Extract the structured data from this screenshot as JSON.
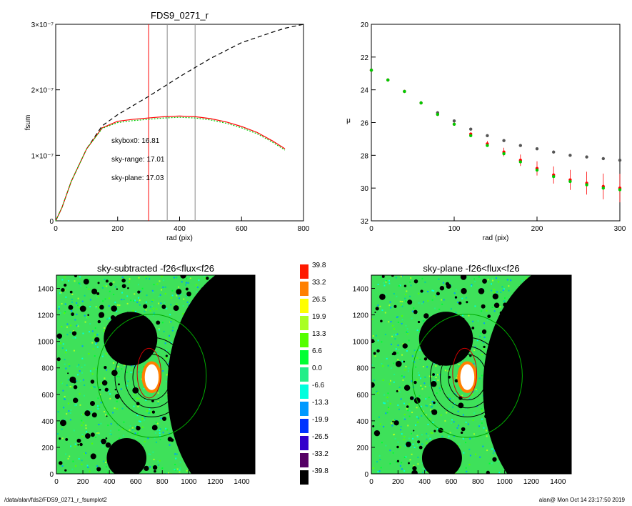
{
  "footer": {
    "path": "/data/alan/fds2/FDS9_0271_r_fsumplot2",
    "user_time": "alan@  Mon Oct 14 23:17:50 2019"
  },
  "chart_data": [
    {
      "type": "line",
      "title": "FDS9_0271_r",
      "xlabel": "rad (pix)",
      "ylabel": "fsum",
      "xlim": [
        0,
        800
      ],
      "ylim": [
        0,
        3e-07
      ],
      "xticks": [
        "0",
        "200",
        "400",
        "600",
        "800"
      ],
      "yticks": [
        "0",
        "1×10⁻⁷",
        "2×10⁻⁷",
        "3×10⁻⁷"
      ],
      "vlines": [
        {
          "x": 300,
          "color": "#ff0000"
        },
        {
          "x": 360,
          "color": "#888888"
        },
        {
          "x": 450,
          "color": "#888888"
        }
      ],
      "annotations": [
        {
          "text": "skybox0: 16.81",
          "color": "#000000"
        },
        {
          "text": "sky-range: 17.01",
          "color": "#ff0000"
        },
        {
          "text": "sky-plane: 17.03",
          "color": "#00cc00"
        }
      ],
      "series": [
        {
          "color": "#000000",
          "style": "dashed",
          "x": [
            0,
            20,
            50,
            100,
            150,
            200,
            300,
            400,
            500,
            600,
            700,
            740,
            800
          ],
          "y": [
            0,
            2e-08,
            6e-08,
            1.1e-07,
            1.45e-07,
            1.62e-07,
            1.9e-07,
            2.2e-07,
            2.48e-07,
            2.72e-07,
            2.88e-07,
            2.94e-07,
            3e-07
          ]
        },
        {
          "color": "#ff0000",
          "style": "solid",
          "x": [
            0,
            20,
            50,
            100,
            150,
            200,
            250,
            300,
            350,
            400,
            450,
            500,
            550,
            600,
            650,
            700,
            740
          ],
          "y": [
            0,
            2e-08,
            6e-08,
            1.1e-07,
            1.42e-07,
            1.52e-07,
            1.55e-07,
            1.57e-07,
            1.59e-07,
            1.6e-07,
            1.59e-07,
            1.56e-07,
            1.51e-07,
            1.44e-07,
            1.35e-07,
            1.22e-07,
            1.1e-07
          ]
        },
        {
          "color": "#00cc00",
          "style": "dotted",
          "x": [
            0,
            20,
            50,
            100,
            150,
            200,
            250,
            300,
            350,
            400,
            450,
            500,
            550,
            600,
            650,
            700,
            740
          ],
          "y": [
            0,
            2e-08,
            6e-08,
            1.1e-07,
            1.41e-07,
            1.5e-07,
            1.53e-07,
            1.55e-07,
            1.57e-07,
            1.58e-07,
            1.57e-07,
            1.54e-07,
            1.49e-07,
            1.42e-07,
            1.33e-07,
            1.2e-07,
            1.08e-07
          ]
        }
      ]
    },
    {
      "type": "scatter",
      "xlabel": "rad (pix)",
      "ylabel": "μ",
      "xlim": [
        0,
        300
      ],
      "ylim": [
        32,
        20
      ],
      "xticks": [
        "0",
        "100",
        "200",
        "300"
      ],
      "yticks": [
        "20",
        "22",
        "24",
        "26",
        "28",
        "30",
        "32"
      ],
      "series": [
        {
          "color": "#555555",
          "x": [
            0,
            20,
            40,
            60,
            80,
            100,
            120,
            140,
            160,
            180,
            200,
            220,
            240,
            260,
            280,
            300
          ],
          "y": [
            22.8,
            23.4,
            24.1,
            24.8,
            25.4,
            25.9,
            26.4,
            26.8,
            27.1,
            27.4,
            27.6,
            27.8,
            28.0,
            28.1,
            28.2,
            28.3
          ]
        },
        {
          "color": "#ff0000",
          "x": [
            0,
            20,
            40,
            60,
            80,
            100,
            120,
            140,
            160,
            180,
            200,
            220,
            240,
            260,
            280,
            300
          ],
          "y": [
            22.8,
            23.4,
            24.1,
            24.8,
            25.5,
            26.1,
            26.7,
            27.3,
            27.8,
            28.3,
            28.8,
            29.2,
            29.5,
            29.7,
            29.9,
            30.0
          ]
        },
        {
          "color": "#00cc00",
          "x": [
            0,
            20,
            40,
            60,
            80,
            100,
            120,
            140,
            160,
            180,
            200,
            220,
            240,
            260,
            280,
            300
          ],
          "y": [
            22.8,
            23.4,
            24.1,
            24.8,
            25.5,
            26.1,
            26.8,
            27.4,
            27.9,
            28.4,
            28.9,
            29.3,
            29.6,
            29.8,
            30.0,
            30.1
          ]
        }
      ]
    },
    {
      "type": "heatmap",
      "title": "sky-subtracted -f26<flux<f26",
      "xlim": [
        0,
        1500
      ],
      "ylim": [
        0,
        1500
      ],
      "xticks": [
        "0",
        "200",
        "400",
        "600",
        "800",
        "1000",
        "1200",
        "1400"
      ],
      "yticks": [
        "0",
        "200",
        "400",
        "600",
        "800",
        "1000",
        "1200",
        "1400"
      ]
    },
    {
      "type": "heatmap",
      "title": "sky-plane -f26<flux<f26",
      "xlim": [
        0,
        1500
      ],
      "ylim": [
        0,
        1500
      ],
      "xticks": [
        "0",
        "200",
        "400",
        "600",
        "800",
        "1000",
        "1200",
        "1400"
      ],
      "yticks": [
        "0",
        "200",
        "400",
        "600",
        "800",
        "1000",
        "1200",
        "1400"
      ]
    }
  ],
  "colorbar": {
    "labels": [
      "39.8",
      "33.2",
      "26.5",
      "19.9",
      "13.3",
      "6.6",
      "0.0",
      "-6.6",
      "-13.3",
      "-19.9",
      "-26.5",
      "-33.2",
      "-39.8"
    ],
    "colors": [
      "#ff1a00",
      "#ff8000",
      "#ffff00",
      "#aaff22",
      "#55ff00",
      "#00ff33",
      "#22ee88",
      "#00ffdd",
      "#0099ff",
      "#0033ff",
      "#3300cc",
      "#550066",
      "#000000"
    ]
  }
}
